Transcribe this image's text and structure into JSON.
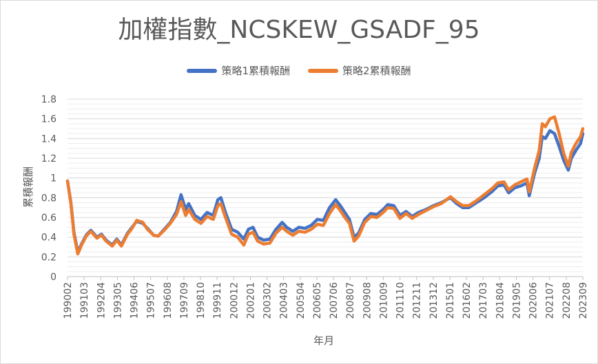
{
  "chart_data": {
    "type": "line",
    "title": "加權指數_NCSKEW_GSADF_95",
    "xlabel": "年月",
    "ylabel": "累積報酬",
    "ylim": [
      0,
      1.8
    ],
    "yticks": [
      "0",
      "0.2",
      "0.4",
      "0.6",
      "0.8",
      "1",
      "1.2",
      "1.4",
      "1.6",
      "1.8"
    ],
    "grid": true,
    "legend_position": "top",
    "x_tick_labels": [
      "199002",
      "199103",
      "199204",
      "199305",
      "199406",
      "199507",
      "199608",
      "199709",
      "199810",
      "199911",
      "200012",
      "200201",
      "200302",
      "200403",
      "200504",
      "200605",
      "200706",
      "200807",
      "200908",
      "201009",
      "201110",
      "201211",
      "201312",
      "201501",
      "201602",
      "201703",
      "201804",
      "201905",
      "202006",
      "202107",
      "202208",
      "202309"
    ],
    "x_range": [
      1990.08,
      2023.75
    ],
    "series": [
      {
        "name": "策略1累積報酬",
        "color": "#4472C4",
        "points": [
          [
            1990.08,
            0.97
          ],
          [
            1990.3,
            0.75
          ],
          [
            1990.5,
            0.45
          ],
          [
            1990.75,
            0.25
          ],
          [
            1991.0,
            0.33
          ],
          [
            1991.3,
            0.42
          ],
          [
            1991.6,
            0.47
          ],
          [
            1992.0,
            0.4
          ],
          [
            1992.3,
            0.43
          ],
          [
            1992.6,
            0.37
          ],
          [
            1993.0,
            0.32
          ],
          [
            1993.3,
            0.38
          ],
          [
            1993.6,
            0.32
          ],
          [
            1994.0,
            0.44
          ],
          [
            1994.3,
            0.5
          ],
          [
            1994.6,
            0.56
          ],
          [
            1995.0,
            0.54
          ],
          [
            1995.3,
            0.49
          ],
          [
            1995.7,
            0.42
          ],
          [
            1996.0,
            0.41
          ],
          [
            1996.4,
            0.48
          ],
          [
            1996.8,
            0.55
          ],
          [
            1997.2,
            0.66
          ],
          [
            1997.5,
            0.83
          ],
          [
            1997.8,
            0.68
          ],
          [
            1998.0,
            0.74
          ],
          [
            1998.4,
            0.62
          ],
          [
            1998.8,
            0.58
          ],
          [
            1999.2,
            0.65
          ],
          [
            1999.6,
            0.62
          ],
          [
            1999.9,
            0.78
          ],
          [
            2000.1,
            0.8
          ],
          [
            2000.4,
            0.65
          ],
          [
            2000.8,
            0.48
          ],
          [
            2001.2,
            0.45
          ],
          [
            2001.6,
            0.38
          ],
          [
            2001.9,
            0.48
          ],
          [
            2002.2,
            0.5
          ],
          [
            2002.5,
            0.4
          ],
          [
            2002.9,
            0.37
          ],
          [
            2003.3,
            0.38
          ],
          [
            2003.7,
            0.48
          ],
          [
            2004.1,
            0.55
          ],
          [
            2004.4,
            0.5
          ],
          [
            2004.8,
            0.46
          ],
          [
            2005.2,
            0.5
          ],
          [
            2005.6,
            0.49
          ],
          [
            2006.0,
            0.52
          ],
          [
            2006.4,
            0.58
          ],
          [
            2006.8,
            0.57
          ],
          [
            2007.2,
            0.7
          ],
          [
            2007.6,
            0.78
          ],
          [
            2007.9,
            0.72
          ],
          [
            2008.2,
            0.65
          ],
          [
            2008.5,
            0.58
          ],
          [
            2008.8,
            0.4
          ],
          [
            2009.1,
            0.44
          ],
          [
            2009.5,
            0.58
          ],
          [
            2009.9,
            0.64
          ],
          [
            2010.3,
            0.63
          ],
          [
            2010.7,
            0.68
          ],
          [
            2011.0,
            0.73
          ],
          [
            2011.4,
            0.72
          ],
          [
            2011.8,
            0.62
          ],
          [
            2012.2,
            0.66
          ],
          [
            2012.6,
            0.61
          ],
          [
            2013.0,
            0.65
          ],
          [
            2013.5,
            0.68
          ],
          [
            2014.0,
            0.72
          ],
          [
            2014.5,
            0.75
          ],
          [
            2015.1,
            0.8
          ],
          [
            2015.5,
            0.74
          ],
          [
            2015.9,
            0.7
          ],
          [
            2016.3,
            0.7
          ],
          [
            2016.8,
            0.75
          ],
          [
            2017.3,
            0.8
          ],
          [
            2017.8,
            0.86
          ],
          [
            2018.2,
            0.92
          ],
          [
            2018.6,
            0.93
          ],
          [
            2018.9,
            0.85
          ],
          [
            2019.3,
            0.9
          ],
          [
            2019.7,
            0.92
          ],
          [
            2020.1,
            0.95
          ],
          [
            2020.25,
            0.82
          ],
          [
            2020.6,
            1.05
          ],
          [
            2020.9,
            1.2
          ],
          [
            2021.1,
            1.42
          ],
          [
            2021.3,
            1.4
          ],
          [
            2021.6,
            1.48
          ],
          [
            2021.9,
            1.45
          ],
          [
            2022.2,
            1.32
          ],
          [
            2022.5,
            1.18
          ],
          [
            2022.8,
            1.08
          ],
          [
            2023.0,
            1.2
          ],
          [
            2023.3,
            1.28
          ],
          [
            2023.6,
            1.35
          ],
          [
            2023.75,
            1.45
          ]
        ]
      },
      {
        "name": "策略2累積報酬",
        "color": "#ED7D31",
        "points": [
          [
            1990.08,
            0.97
          ],
          [
            1990.3,
            0.74
          ],
          [
            1990.5,
            0.43
          ],
          [
            1990.75,
            0.23
          ],
          [
            1991.0,
            0.32
          ],
          [
            1991.3,
            0.41
          ],
          [
            1991.6,
            0.46
          ],
          [
            1992.0,
            0.39
          ],
          [
            1992.3,
            0.42
          ],
          [
            1992.6,
            0.36
          ],
          [
            1993.0,
            0.31
          ],
          [
            1993.3,
            0.37
          ],
          [
            1993.6,
            0.31
          ],
          [
            1994.0,
            0.43
          ],
          [
            1994.3,
            0.49
          ],
          [
            1994.6,
            0.57
          ],
          [
            1995.0,
            0.55
          ],
          [
            1995.3,
            0.48
          ],
          [
            1995.7,
            0.42
          ],
          [
            1996.0,
            0.41
          ],
          [
            1996.4,
            0.47
          ],
          [
            1996.8,
            0.54
          ],
          [
            1997.2,
            0.63
          ],
          [
            1997.5,
            0.76
          ],
          [
            1997.8,
            0.62
          ],
          [
            1998.0,
            0.68
          ],
          [
            1998.4,
            0.58
          ],
          [
            1998.8,
            0.54
          ],
          [
            1999.2,
            0.61
          ],
          [
            1999.6,
            0.58
          ],
          [
            1999.9,
            0.72
          ],
          [
            2000.1,
            0.74
          ],
          [
            2000.4,
            0.6
          ],
          [
            2000.8,
            0.43
          ],
          [
            2001.2,
            0.4
          ],
          [
            2001.6,
            0.32
          ],
          [
            2001.9,
            0.43
          ],
          [
            2002.2,
            0.45
          ],
          [
            2002.5,
            0.36
          ],
          [
            2002.9,
            0.33
          ],
          [
            2003.3,
            0.34
          ],
          [
            2003.7,
            0.44
          ],
          [
            2004.1,
            0.5
          ],
          [
            2004.4,
            0.46
          ],
          [
            2004.8,
            0.42
          ],
          [
            2005.2,
            0.46
          ],
          [
            2005.6,
            0.45
          ],
          [
            2006.0,
            0.48
          ],
          [
            2006.4,
            0.53
          ],
          [
            2006.8,
            0.52
          ],
          [
            2007.2,
            0.64
          ],
          [
            2007.6,
            0.73
          ],
          [
            2007.9,
            0.67
          ],
          [
            2008.2,
            0.6
          ],
          [
            2008.5,
            0.54
          ],
          [
            2008.8,
            0.36
          ],
          [
            2009.1,
            0.41
          ],
          [
            2009.5,
            0.55
          ],
          [
            2009.9,
            0.61
          ],
          [
            2010.3,
            0.6
          ],
          [
            2010.7,
            0.65
          ],
          [
            2011.0,
            0.7
          ],
          [
            2011.4,
            0.69
          ],
          [
            2011.8,
            0.59
          ],
          [
            2012.2,
            0.64
          ],
          [
            2012.6,
            0.59
          ],
          [
            2013.0,
            0.63
          ],
          [
            2013.5,
            0.67
          ],
          [
            2014.0,
            0.71
          ],
          [
            2014.5,
            0.74
          ],
          [
            2015.1,
            0.81
          ],
          [
            2015.5,
            0.76
          ],
          [
            2015.9,
            0.72
          ],
          [
            2016.3,
            0.72
          ],
          [
            2016.8,
            0.77
          ],
          [
            2017.3,
            0.83
          ],
          [
            2017.8,
            0.89
          ],
          [
            2018.2,
            0.95
          ],
          [
            2018.6,
            0.96
          ],
          [
            2018.9,
            0.88
          ],
          [
            2019.3,
            0.93
          ],
          [
            2019.7,
            0.96
          ],
          [
            2020.1,
            0.99
          ],
          [
            2020.25,
            0.86
          ],
          [
            2020.6,
            1.1
          ],
          [
            2020.9,
            1.28
          ],
          [
            2021.1,
            1.55
          ],
          [
            2021.3,
            1.52
          ],
          [
            2021.6,
            1.6
          ],
          [
            2021.9,
            1.62
          ],
          [
            2022.2,
            1.45
          ],
          [
            2022.5,
            1.25
          ],
          [
            2022.8,
            1.12
          ],
          [
            2023.0,
            1.26
          ],
          [
            2023.3,
            1.35
          ],
          [
            2023.6,
            1.42
          ],
          [
            2023.75,
            1.5
          ]
        ]
      }
    ]
  }
}
